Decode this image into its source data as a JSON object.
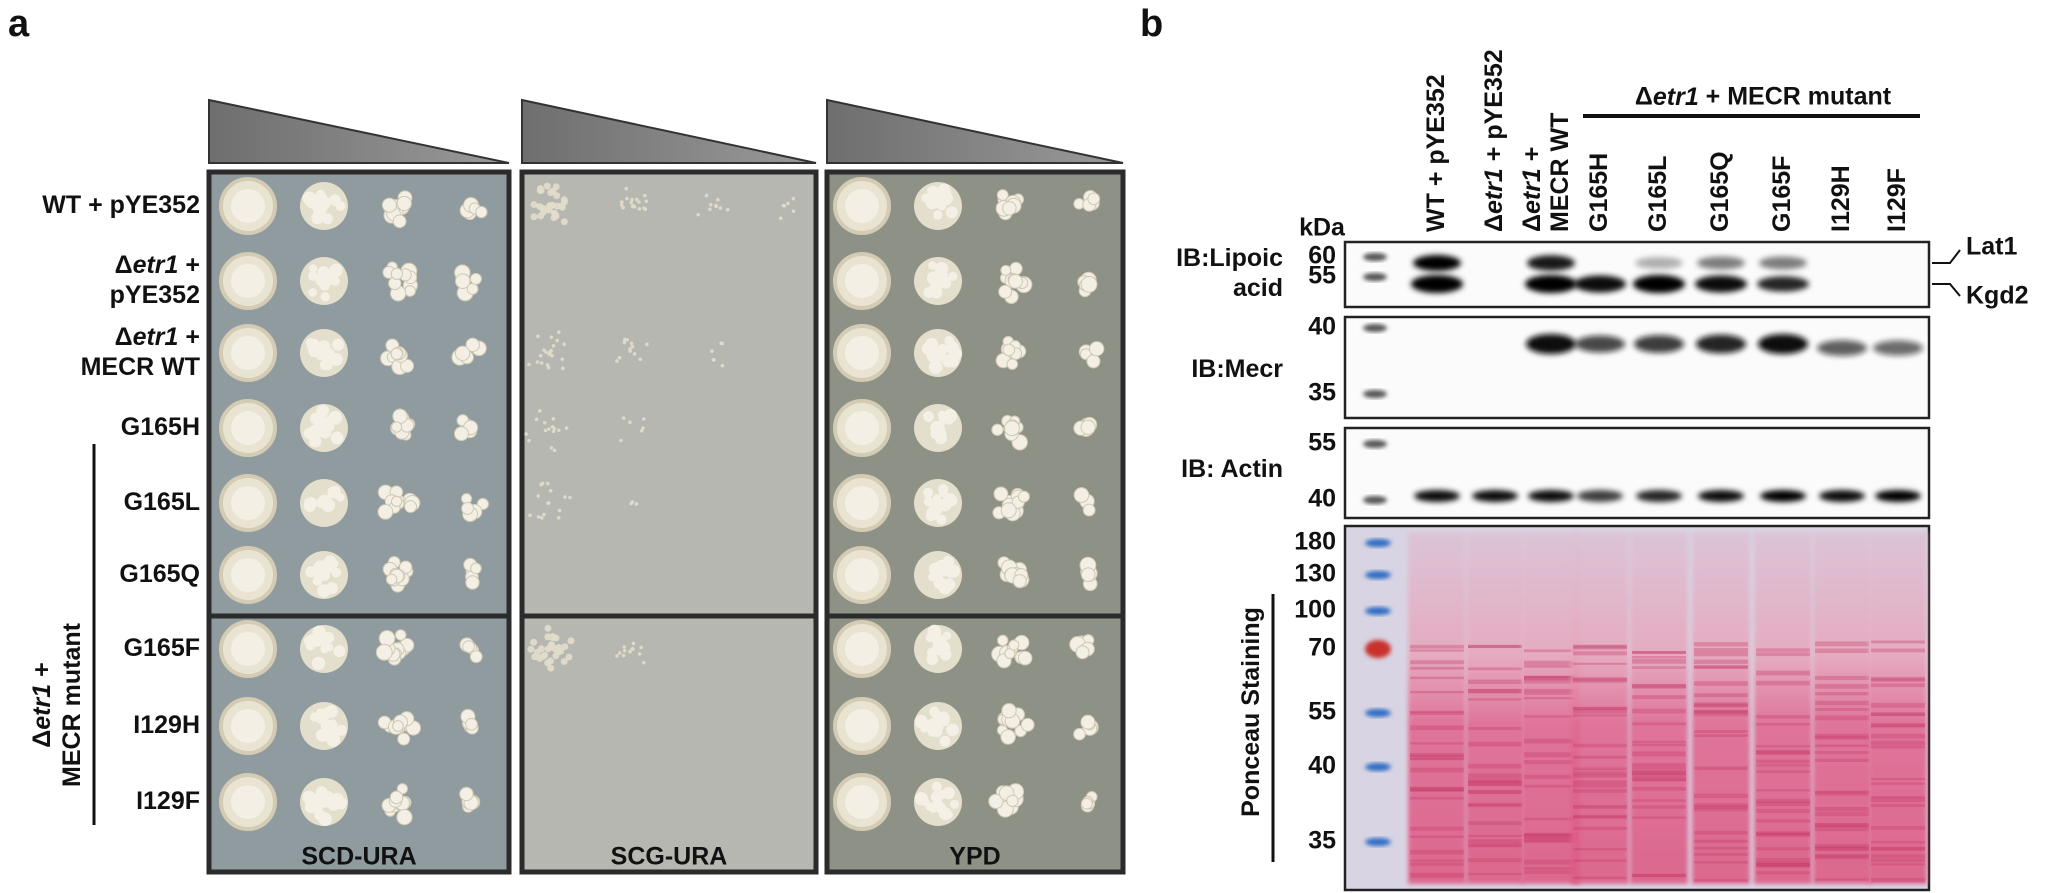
{
  "panel_a": {
    "label": "a",
    "rows": [
      [
        "WT + pYE352"
      ],
      [
        "Δetr1 +",
        "pYE352"
      ],
      [
        "Δetr1 +",
        "MECR WT"
      ],
      [
        "G165H"
      ],
      [
        "G165L"
      ],
      [
        "G165Q"
      ],
      [
        "G165F"
      ],
      [
        "I129H"
      ],
      [
        "I129F"
      ]
    ],
    "group_label": [
      "Δetr1 +",
      "MECR mutant"
    ],
    "media": [
      "SCD-URA",
      "SCG-URA",
      "YPD"
    ]
  },
  "panel_b": {
    "label": "b",
    "lanes": [
      [
        "WT + pYE352"
      ],
      [
        "Δetr1 + pYE352"
      ],
      [
        "Δetr1 +",
        "MECR WT"
      ],
      [
        "G165H"
      ],
      [
        "G165L"
      ],
      [
        "G165Q"
      ],
      [
        "G165F"
      ],
      [
        "I129H"
      ],
      [
        "I129F"
      ]
    ],
    "group_label": "Δetr1 + MECR mutant",
    "unit": "kDa",
    "blots": [
      {
        "label": [
          "IB:Lipoic",
          "acid"
        ],
        "markers": [
          60,
          55
        ],
        "bands": [
          "Lat1",
          "Kgd2"
        ]
      },
      {
        "label": [
          "IB:Mecr"
        ],
        "markers": [
          40,
          35
        ]
      },
      {
        "label": [
          "IB: Actin"
        ],
        "markers": [
          55,
          40
        ]
      },
      {
        "label": [
          "Ponceau Staining"
        ],
        "markers": [
          180,
          130,
          100,
          70,
          55,
          40,
          35
        ]
      }
    ]
  }
}
